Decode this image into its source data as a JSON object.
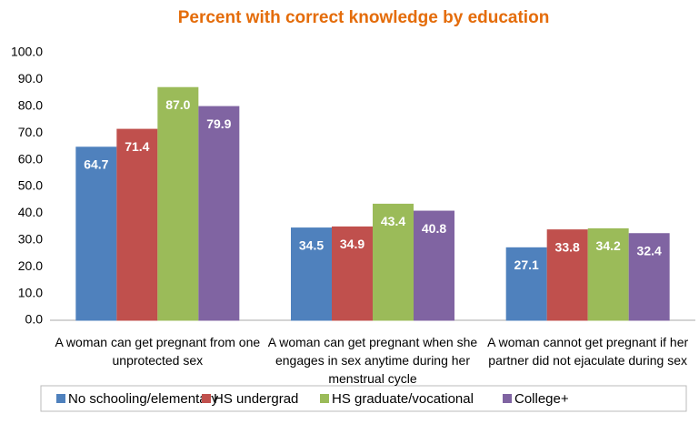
{
  "chart_data": {
    "type": "bar",
    "title": "Percent with correct knowledge by education",
    "categories": [
      "A woman can get pregnant from one unprotected sex",
      "A woman can get pregnant when she engages in sex anytime during her menstrual cycle",
      "A woman cannot get pregnant if her partner did not ejaculate during sex"
    ],
    "series": [
      {
        "name": "No schooling/elementary",
        "color": "#4f81bd",
        "values": [
          64.7,
          34.5,
          27.1
        ],
        "value_labels": [
          "64.7",
          "34.5",
          "27.1"
        ]
      },
      {
        "name": "HS undergrad",
        "color": "#c0504d",
        "values": [
          71.4,
          34.9,
          33.8
        ],
        "value_labels": [
          "71.4",
          "34.9",
          "33.8"
        ]
      },
      {
        "name": "HS graduate/vocational",
        "color": "#9bbb59",
        "values": [
          87,
          43.4,
          34.2
        ],
        "value_labels": [
          "87.0",
          "43.4",
          "34.2"
        ]
      },
      {
        "name": "College+",
        "color": "#8064a2",
        "values": [
          79.9,
          40.8,
          32.4
        ],
        "value_labels": [
          "79.9",
          "40.8",
          "32.4"
        ]
      }
    ],
    "ylim": [
      0,
      100
    ],
    "yticks": [
      {
        "value": 0,
        "label": "0.0"
      },
      {
        "value": 10,
        "label": "10.0"
      },
      {
        "value": 20,
        "label": "20.0"
      },
      {
        "value": 30,
        "label": "30.0"
      },
      {
        "value": 40,
        "label": "40.0"
      },
      {
        "value": 50,
        "label": "50.0"
      },
      {
        "value": 60,
        "label": "60.0"
      },
      {
        "value": 70,
        "label": "70.0"
      },
      {
        "value": 80,
        "label": "80.0"
      },
      {
        "value": 90,
        "label": "90.0"
      },
      {
        "value": 100,
        "label": "100.0"
      }
    ],
    "legend": "bottom"
  }
}
